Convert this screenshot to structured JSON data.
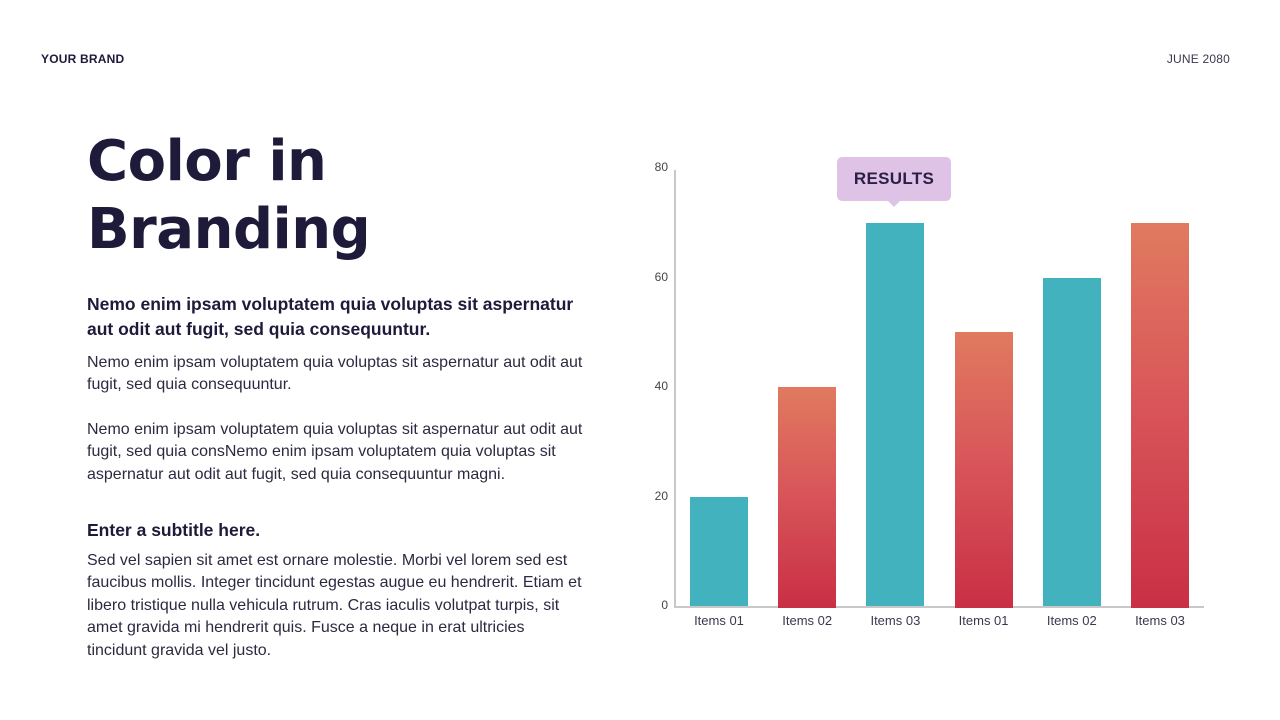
{
  "header": {
    "brand": "YOUR BRAND",
    "date": "JUNE 2080"
  },
  "content": {
    "title": "Color in Branding",
    "lead": "Nemo enim ipsam voluptatem quia voluptas sit aspernatur aut odit aut fugit, sed quia consequuntur.",
    "paragraph1": "Nemo enim ipsam voluptatem quia voluptas sit aspernatur aut odit aut fugit, sed quia consequuntur.",
    "paragraph2": "Nemo enim ipsam voluptatem quia voluptas sit aspernatur aut odit aut fugit, sed quia consNemo enim ipsam voluptatem quia voluptas sit aspernatur aut odit aut fugit, sed quia consequuntur magni.",
    "subtitle": "Enter a subtitle here.",
    "paragraph3": "Sed vel sapien sit amet est ornare molestie. Morbi vel lorem sed est faucibus mollis. Integer tincidunt egestas augue eu hendrerit. Etiam et libero tristique nulla vehicula rutrum.  Cras iaculis volutpat turpis, sit amet gravida mi hendrerit quis. Fusce a neque in erat ultricies tincidunt gravida vel justo."
  },
  "colors": {
    "teal": "#42b2bf",
    "red_top": "#e07a5f",
    "red_bottom": "#c92f45",
    "callout_bg": "#dfc3e6",
    "text_dark": "#1d1a3a"
  },
  "chart_data": {
    "type": "bar",
    "title": "",
    "xlabel": "",
    "ylabel": "",
    "ylim": [
      0,
      80
    ],
    "yticks": [
      "0",
      "20",
      "40",
      "60",
      "80"
    ],
    "categories": [
      "Items 01",
      "Items 02",
      "Items 03",
      "Items 01",
      "Items 02",
      "Items 03"
    ],
    "values": [
      20,
      40,
      70,
      50,
      60,
      70
    ],
    "bar_colors": [
      "teal",
      "red",
      "teal",
      "red",
      "teal",
      "red"
    ],
    "grid": false,
    "legend": null,
    "annotations": [
      {
        "text": "RESULTS",
        "target_index": 2
      }
    ]
  }
}
